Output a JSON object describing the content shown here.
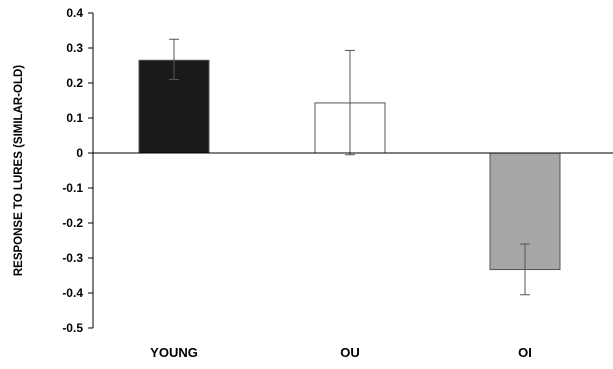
{
  "chart_data": {
    "type": "bar",
    "title": "",
    "xlabel": "",
    "ylabel": "RESPONSE TO LURES (SIMILAR-OLD)",
    "ylim": [
      -0.5,
      0.4
    ],
    "yticks": [
      0.4,
      0.3,
      0.2,
      0.1,
      0,
      -0.1,
      -0.2,
      -0.3,
      -0.4,
      -0.5
    ],
    "ytick_labels": [
      "0.4",
      "0.3",
      "0.2",
      "0.1",
      "0",
      "-0.1",
      "-0.2",
      "-0.3",
      "-0.4",
      "-0.5"
    ],
    "grid": false,
    "categories": [
      "YOUNG",
      "OU",
      "OI"
    ],
    "values": [
      0.265,
      0.143,
      -0.333
    ],
    "error_low": [
      0.21,
      -0.005,
      -0.405
    ],
    "error_high": [
      0.325,
      0.293,
      -0.26
    ],
    "colors": [
      "#1a1a1a",
      "#ffffff",
      "#a6a6a6"
    ],
    "edge_color": "#555555"
  }
}
